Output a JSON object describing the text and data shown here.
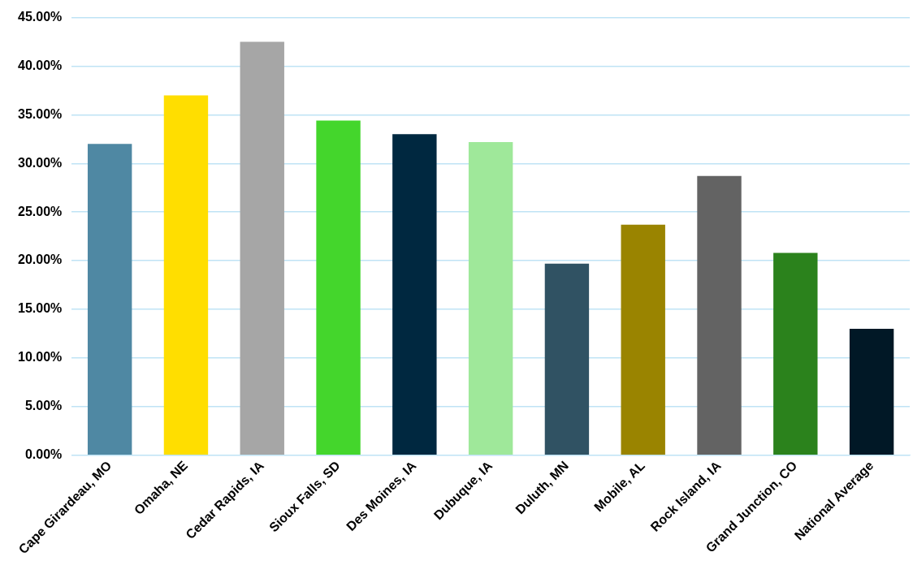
{
  "chart_data": {
    "type": "bar",
    "categories": [
      "Cape Girardeau, MO",
      "Omaha, NE",
      "Cedar Rapids, IA",
      "Sioux Falls, SD",
      "Des Moines, IA",
      "Dubuque, IA",
      "Duluth, MN",
      "Mobile, AL",
      "Rock Island, IA",
      "Grand Junction, CO",
      "National Average"
    ],
    "values": [
      32.0,
      37.0,
      42.5,
      34.4,
      33.0,
      32.2,
      19.7,
      23.7,
      28.7,
      20.8,
      13.0
    ],
    "colors": [
      "#4f88a3",
      "#ffde00",
      "#a6a6a6",
      "#44d62c",
      "#002840",
      "#9fe89a",
      "#305263",
      "#9a8400",
      "#636363",
      "#2b821c",
      "#011826"
    ],
    "ylim": [
      0,
      45
    ],
    "yticks": [
      {
        "value": 0,
        "label": "0.00%"
      },
      {
        "value": 5,
        "label": "5.00%"
      },
      {
        "value": 10,
        "label": "10.00%"
      },
      {
        "value": 15,
        "label": "15.00%"
      },
      {
        "value": 20,
        "label": "20.00%"
      },
      {
        "value": 25,
        "label": "25.00%"
      },
      {
        "value": 30,
        "label": "30.00%"
      },
      {
        "value": 35,
        "label": "35.00%"
      },
      {
        "value": 40,
        "label": "40.00%"
      },
      {
        "value": 45,
        "label": "45.00%"
      }
    ],
    "grid": "y",
    "legend": false
  }
}
